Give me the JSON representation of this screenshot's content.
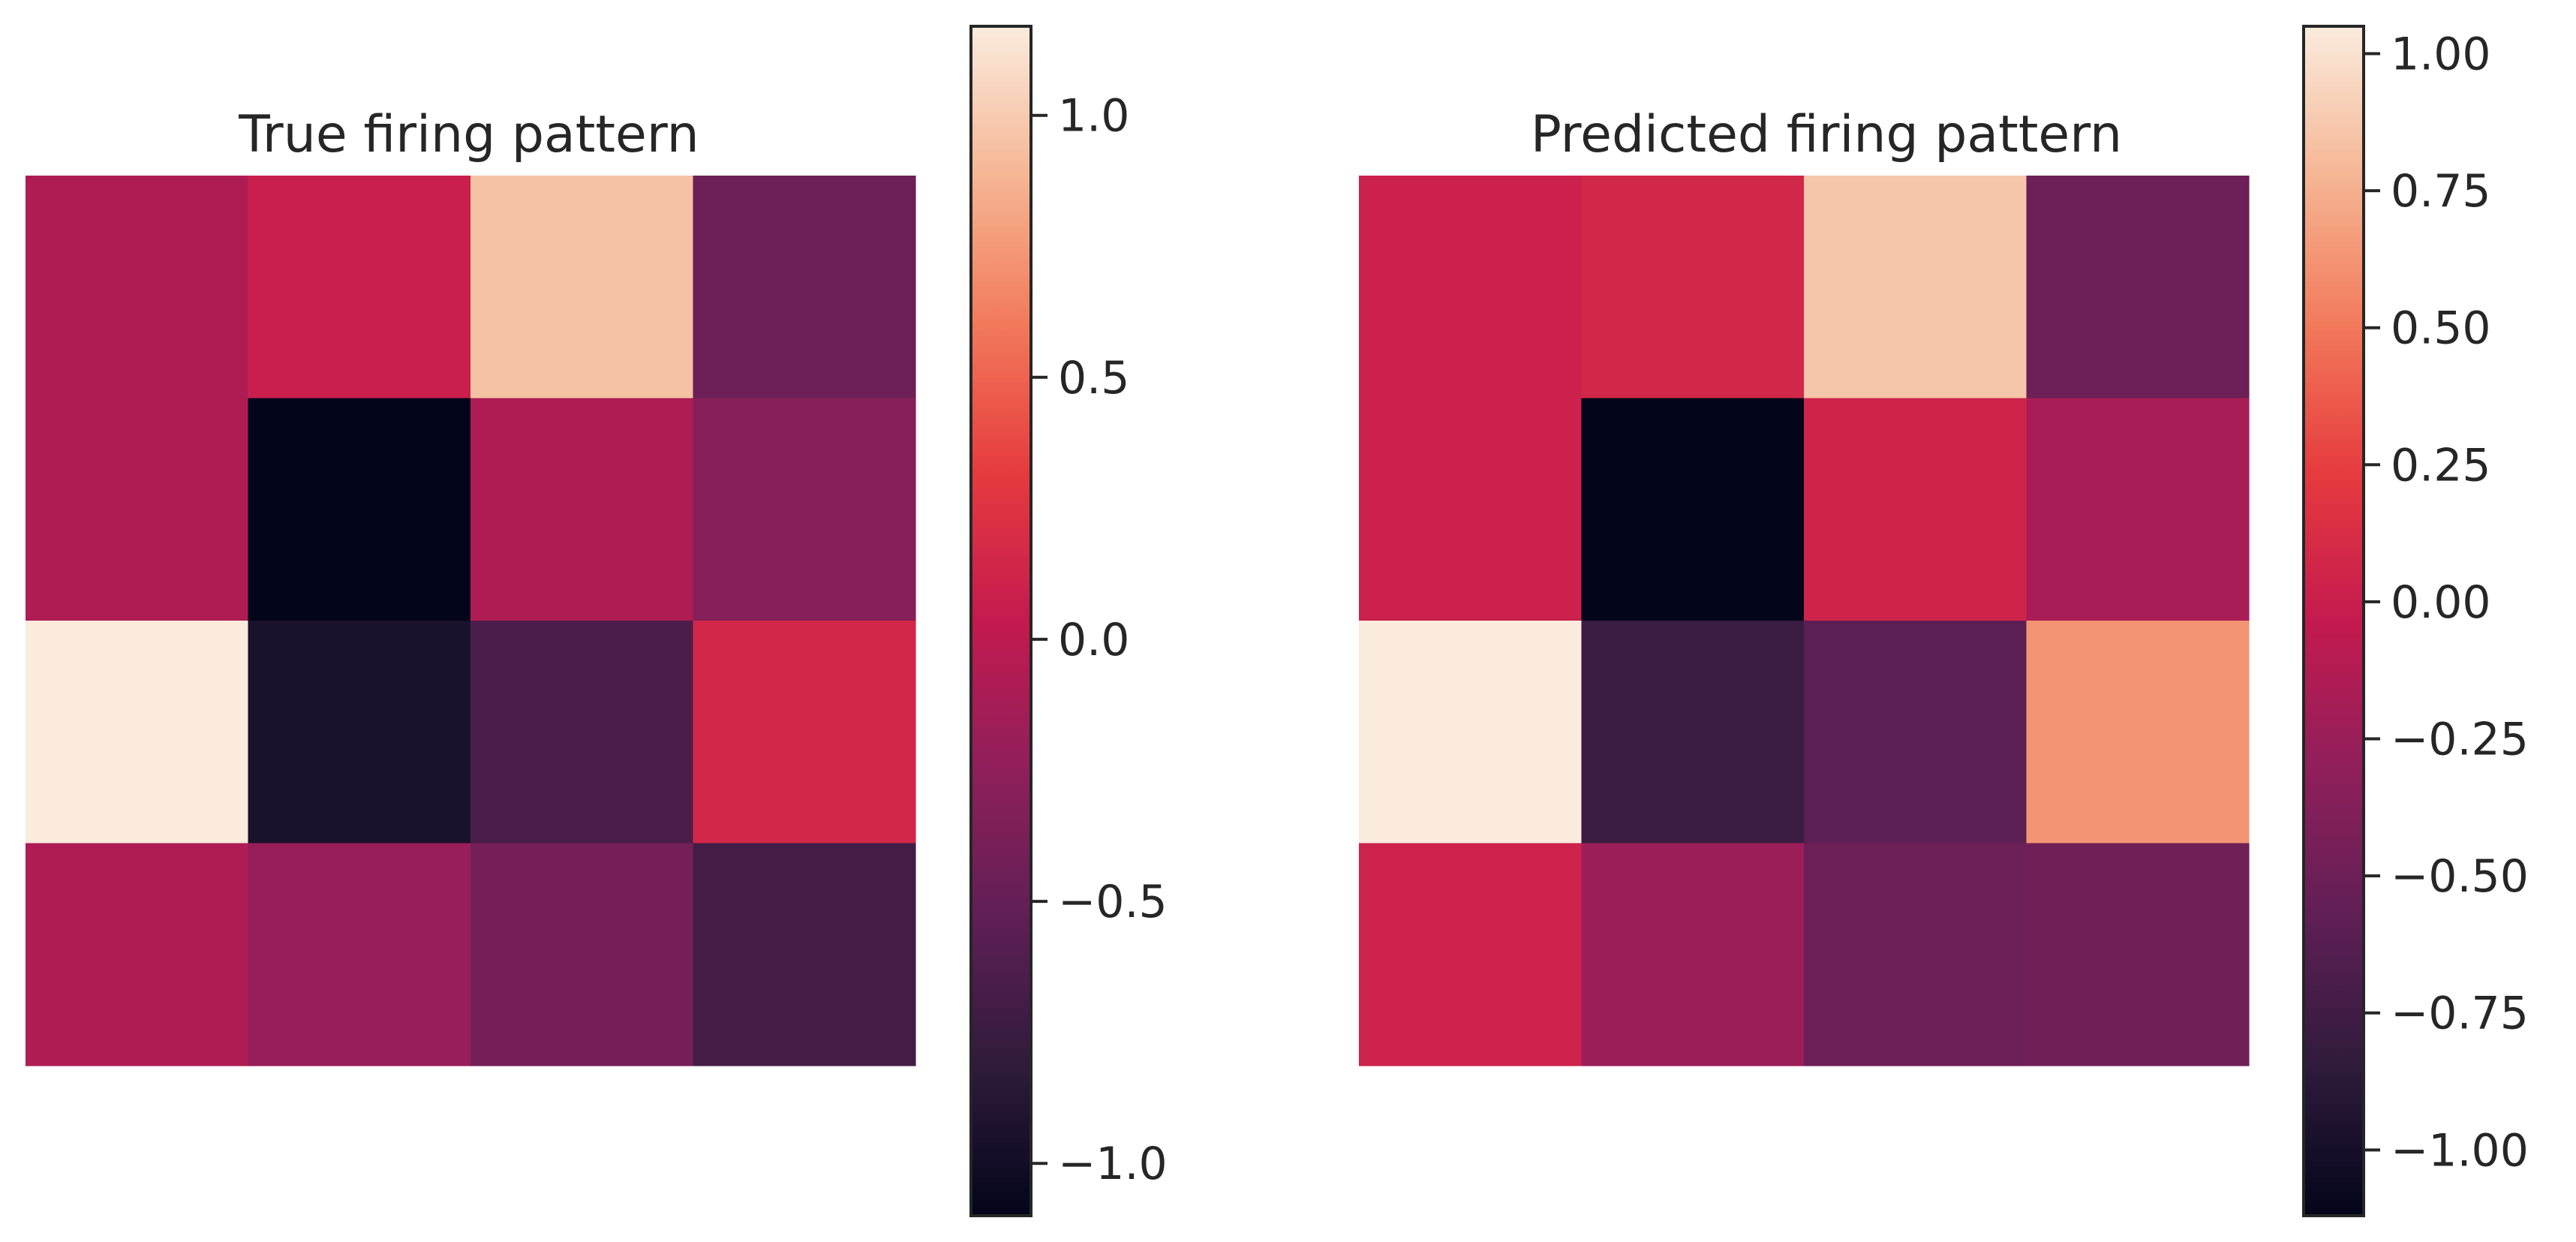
{
  "chart_data": [
    {
      "type": "heatmap",
      "title": "True firing pattern",
      "rows": 4,
      "cols": 4,
      "values": [
        [
          -0.08,
          0.08,
          0.95,
          -0.45
        ],
        [
          -0.08,
          -1.1,
          -0.08,
          -0.3
        ],
        [
          1.17,
          -0.95,
          -0.65,
          0.15
        ],
        [
          -0.08,
          -0.2,
          -0.4,
          -0.7
        ]
      ],
      "colormap": "rocket",
      "colorbar": {
        "vmin": -1.1,
        "vmax": 1.17,
        "ticks": [
          -1.0,
          -0.5,
          0.0,
          0.5,
          1.0
        ],
        "tick_labels": [
          "−1.0",
          "−0.5",
          "0.0",
          "0.5",
          "1.0"
        ]
      }
    },
    {
      "type": "heatmap",
      "title": "Predicted firing pattern",
      "rows": 4,
      "cols": 4,
      "values": [
        [
          0.02,
          0.07,
          0.86,
          -0.5
        ],
        [
          0.02,
          -1.12,
          0.05,
          -0.18
        ],
        [
          1.05,
          -0.78,
          -0.6,
          0.63
        ],
        [
          0.03,
          -0.24,
          -0.5,
          -0.48
        ]
      ],
      "colormap": "rocket",
      "colorbar": {
        "vmin": -1.12,
        "vmax": 1.05,
        "ticks": [
          -1.0,
          -0.75,
          -0.5,
          -0.25,
          0.0,
          0.25,
          0.5,
          0.75,
          1.0
        ],
        "tick_labels": [
          "−1.00",
          "−0.75",
          "−0.50",
          "−0.25",
          "0.00",
          "0.25",
          "0.50",
          "0.75",
          "1.00"
        ]
      }
    }
  ]
}
